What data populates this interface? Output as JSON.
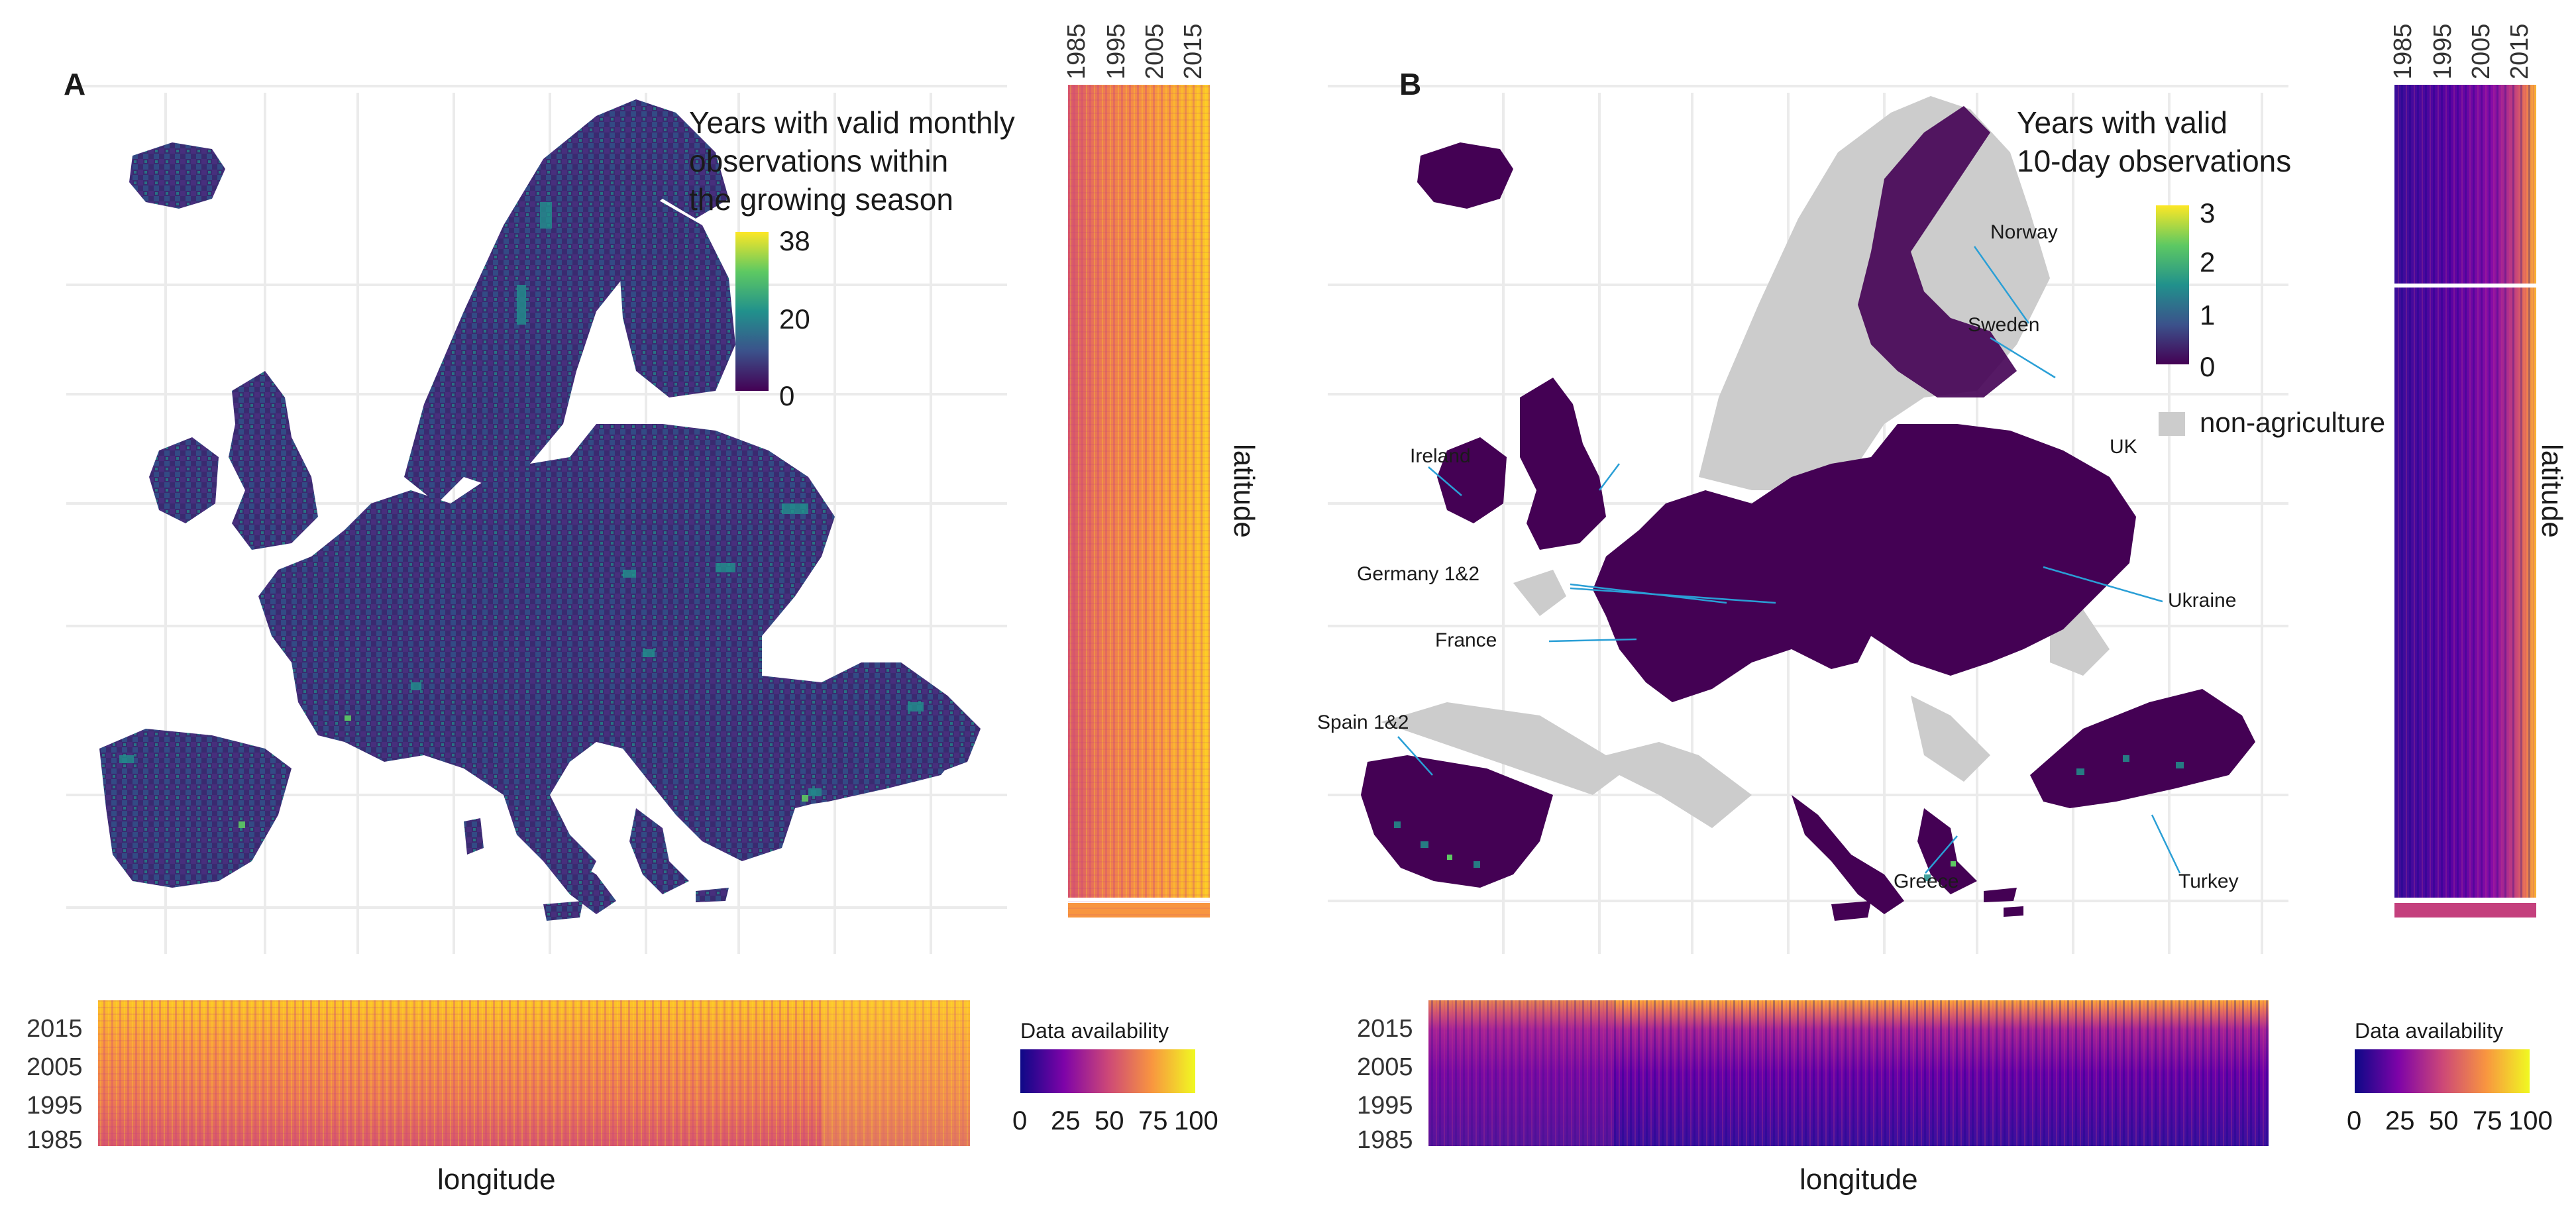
{
  "panels": [
    {
      "letter": "A",
      "legend": {
        "title_lines": [
          "Years with valid monthly",
          "observations within",
          "the growing season"
        ],
        "ticks": [
          "38",
          "20",
          "0"
        ],
        "range": [
          0,
          38
        ],
        "palette": "viridis"
      },
      "top_heatmap_year_ticks": [
        "1985",
        "1995",
        "2005",
        "2015"
      ],
      "side_axis_label": "latitude",
      "bottom_heatmap_year_ticks": [
        "2015",
        "2005",
        "1995",
        "1985"
      ],
      "bottom_axis_label": "longitude",
      "data_availability": {
        "title": "Data availability",
        "ticks": [
          "0",
          "25",
          "50",
          "75",
          "100"
        ],
        "palette": "plasma",
        "level": "high (mostly 60-100)"
      }
    },
    {
      "letter": "B",
      "legend": {
        "title_lines": [
          "Years with valid",
          "10-day observations"
        ],
        "ticks": [
          "3",
          "2",
          "1",
          "0"
        ],
        "range": [
          0,
          3
        ],
        "palette": "viridis"
      },
      "nonag_label": "non-agriculture",
      "nonag_color": "#cccccc",
      "country_labels": [
        "Norway",
        "Sweden",
        "Ireland",
        "UK",
        "Germany 1&2",
        "France",
        "Ukraine",
        "Spain 1&2",
        "Greece",
        "Turkey"
      ],
      "top_heatmap_year_ticks": [
        "1985",
        "1995",
        "2005",
        "2015"
      ],
      "side_axis_label": "latitude",
      "bottom_heatmap_year_ticks": [
        "2015",
        "2005",
        "1995",
        "1985"
      ],
      "bottom_axis_label": "longitude",
      "data_availability": {
        "title": "Data availability",
        "ticks": [
          "0",
          "25",
          "50",
          "75",
          "100"
        ],
        "palette": "plasma",
        "level": "low (mostly 10-40, higher in recent years)"
      }
    }
  ],
  "colors": {
    "map_dark": "#440154",
    "map_teal": "#21918c",
    "gridline": "#ebebeb",
    "leader_line": "#2a9fd6"
  }
}
